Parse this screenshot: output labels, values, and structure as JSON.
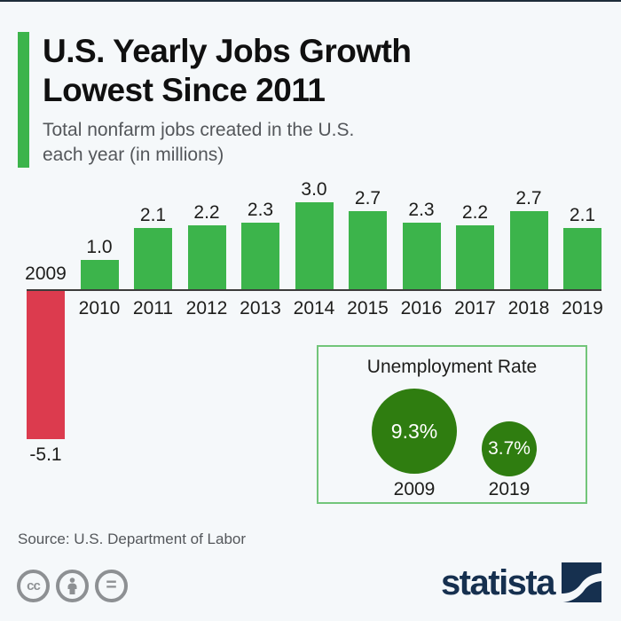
{
  "header": {
    "title_line1": "U.S. Yearly Jobs Growth",
    "title_line2": "Lowest Since 2011",
    "subtitle_line1": "Total nonfarm jobs created in the U.S.",
    "subtitle_line2": "each year (in millions)"
  },
  "chart_data": [
    {
      "type": "bar",
      "title": "Total nonfarm jobs created in the U.S. each year (in millions)",
      "categories": [
        "2009",
        "2010",
        "2011",
        "2012",
        "2013",
        "2014",
        "2015",
        "2016",
        "2017",
        "2018",
        "2019"
      ],
      "values": [
        -5.1,
        1.0,
        2.1,
        2.2,
        2.3,
        3.0,
        2.7,
        2.3,
        2.2,
        2.7,
        2.1
      ],
      "value_labels": [
        "-5.1",
        "1.0",
        "2.1",
        "2.2",
        "2.3",
        "3.0",
        "2.7",
        "2.3",
        "2.2",
        "2.7",
        "2.1"
      ],
      "xlabel": "",
      "ylabel": "",
      "ylim": [
        -5.5,
        3.5
      ],
      "grid": false,
      "bar_color_positive": "#3cb44b",
      "bar_color_negative": "#dc3b4e"
    },
    {
      "type": "bubble",
      "title": "Unemployment Rate",
      "categories": [
        "2009",
        "2019"
      ],
      "values": [
        9.3,
        3.7
      ],
      "value_labels": [
        "9.3%",
        "3.7%"
      ],
      "color": "#2f7d10",
      "legend_position": "none"
    }
  ],
  "footer": {
    "source": "Source: U.S. Department of Labor",
    "cc_label": "cc",
    "equal_label": "=",
    "brand": "statista"
  },
  "colors": {
    "background": "#f5f8fa",
    "top_border": "#1e2c3a",
    "accent_green": "#3cb44b",
    "positive_bar": "#3cb44b",
    "negative_bar": "#dc3b4e",
    "bubble_green": "#2f7d10",
    "panel_border": "#72c57a",
    "axis_line": "#3c3c3b",
    "title_text": "#101010",
    "muted_text": "#54575b",
    "label_text": "#1d1d1b",
    "cc_gray": "#8d9093",
    "brand_navy": "#16304f"
  }
}
